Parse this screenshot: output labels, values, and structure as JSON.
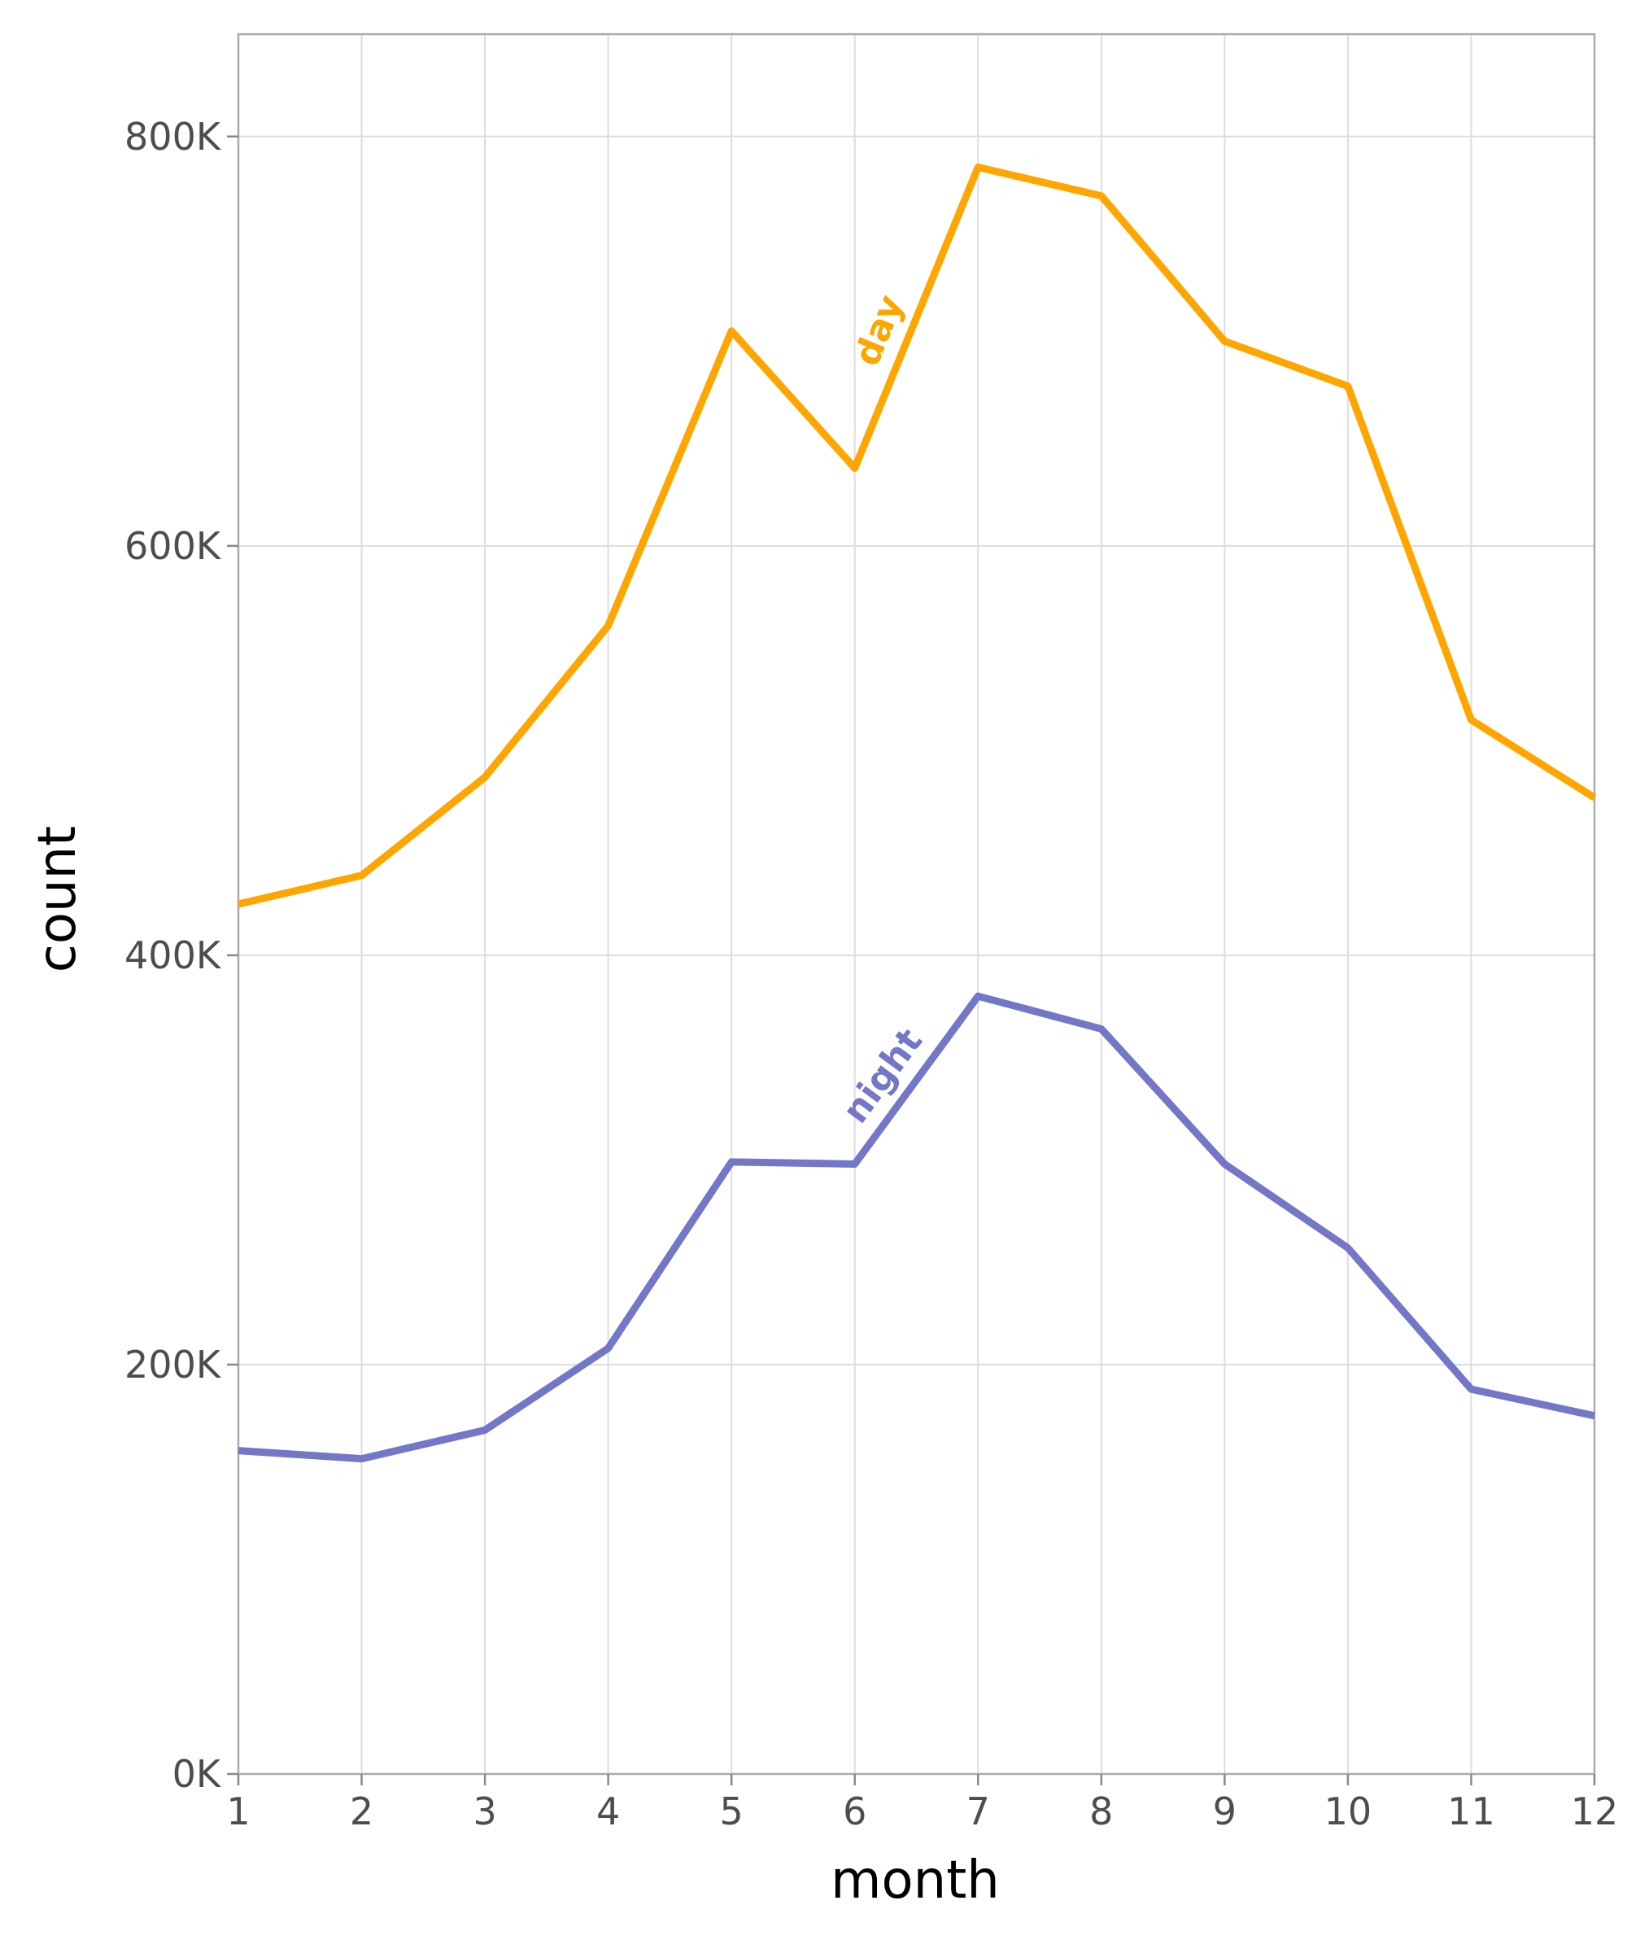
{
  "chart_data": {
    "type": "line",
    "title": "",
    "xlabel": "month",
    "ylabel": "count",
    "x": [
      1,
      2,
      3,
      4,
      5,
      6,
      7,
      8,
      9,
      10,
      11,
      12
    ],
    "xlim": [
      1,
      12
    ],
    "ylim": [
      0,
      850000
    ],
    "y_ticks": [
      0,
      200000,
      400000,
      600000,
      800000
    ],
    "y_tick_labels": [
      "0K",
      "200K",
      "400K",
      "600K",
      "800K"
    ],
    "x_tick_labels": [
      "1",
      "2",
      "3",
      "4",
      "5",
      "6",
      "7",
      "8",
      "9",
      "10",
      "11",
      "12"
    ],
    "grid": true,
    "legend": "none (series labeled inline)",
    "series": [
      {
        "name": "day",
        "color": "#FFA500",
        "values": [
          425000,
          439000,
          487000,
          561000,
          705000,
          638000,
          785000,
          771000,
          700000,
          678000,
          515000,
          477000
        ]
      },
      {
        "name": "night",
        "color": "#7377C7",
        "values": [
          158000,
          154000,
          168000,
          208000,
          299000,
          298000,
          380000,
          364000,
          298000,
          257000,
          188000,
          175000
        ]
      }
    ]
  }
}
